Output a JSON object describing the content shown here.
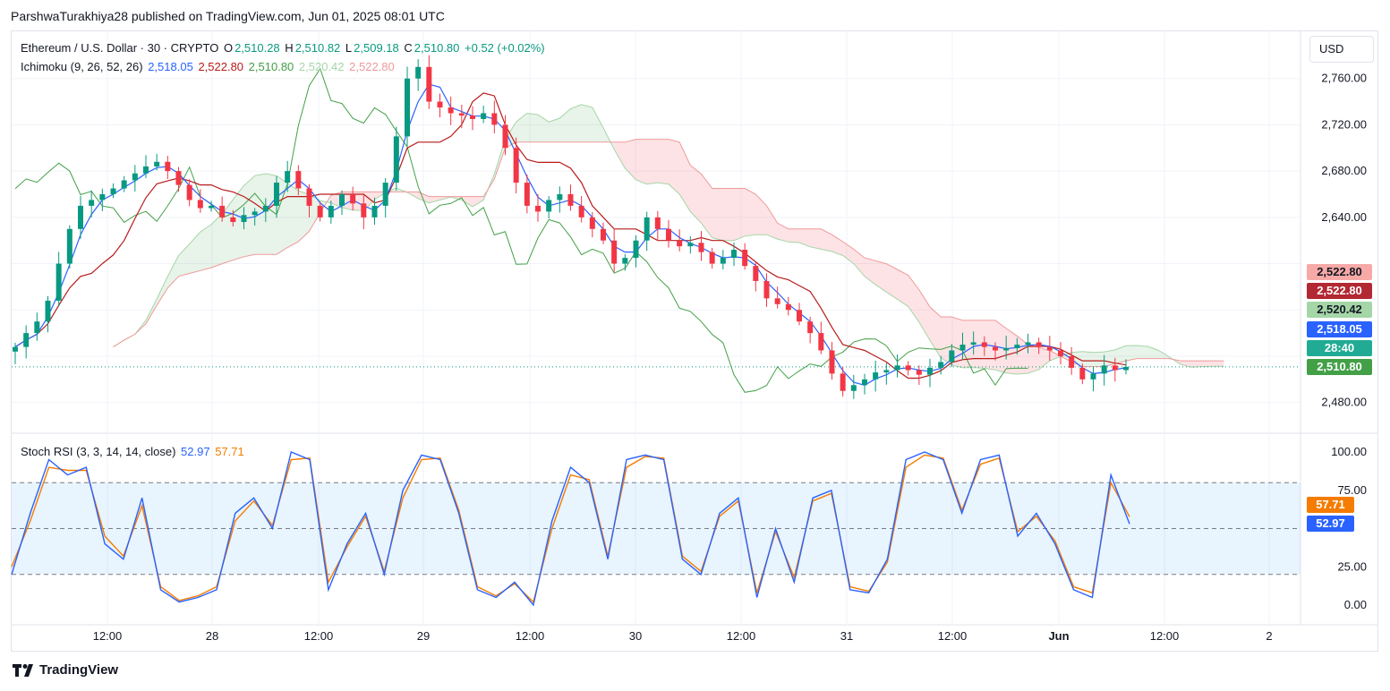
{
  "header": {
    "publisher": "ParshwaTurakhiya28 published on TradingView.com, Jun 01, 2025 08:01 UTC"
  },
  "legend": {
    "symbol": "Ethereum / U.S. Dollar · 30 · CRYPTO",
    "open_label": "O",
    "open": "2,510.28",
    "high_label": "H",
    "high": "2,510.82",
    "low_label": "L",
    "low": "2,509.18",
    "close_label": "C",
    "close": "2,510.80",
    "change": "+0.52 (+0.02%)",
    "ichimoku_title": "Ichimoku (9, 26, 52, 26)",
    "ichimoku_values": [
      "2,518.05",
      "2,522.80",
      "2,510.80",
      "2,520.42",
      "2,522.80"
    ],
    "stoch_title": "Stoch RSI (3, 3, 14, 14, close)",
    "stoch_k": "52.97",
    "stoch_d": "57.71"
  },
  "currency_button": "USD",
  "price_tags": [
    {
      "text": "2,522.80",
      "bg": "#f7a9a7",
      "fg": "#131722"
    },
    {
      "text": "2,522.80",
      "bg": "#b22833",
      "fg": "#ffffff"
    },
    {
      "text": "2,520.42",
      "bg": "#a5d6a7",
      "fg": "#131722"
    },
    {
      "text": "2,518.05",
      "bg": "#2962ff",
      "fg": "#ffffff"
    },
    {
      "text": "28:40",
      "bg": "#22ab94",
      "fg": "#ffffff"
    },
    {
      "text": "2,510.80",
      "bg": "#43a047",
      "fg": "#ffffff"
    }
  ],
  "stoch_tags": [
    {
      "text": "57.71",
      "bg": "#f57c00",
      "fg": "#ffffff"
    },
    {
      "text": "52.97",
      "bg": "#2962ff",
      "fg": "#ffffff"
    }
  ],
  "brand": "TradingView",
  "colors": {
    "up": "#089981",
    "down": "#f23645",
    "tenkan": "#2962ff",
    "kijun": "#b71c1c",
    "chikou": "#43a047",
    "span_a": "#a5d6a7",
    "span_b": "#ef9a9a",
    "stoch_k": "#2962ff",
    "stoch_d": "#f57c00"
  },
  "chart_data": [
    {
      "type": "line",
      "title": "Ethereum / U.S. Dollar · 30 · CRYPTO",
      "y_ticks": [
        "2,760.00",
        "2,720.00",
        "2,680.00",
        "2,640.00",
        "2,480.00"
      ],
      "ylim": [
        2455,
        2800
      ],
      "x_ticks": [
        "12:00",
        "28",
        "12:00",
        "29",
        "12:00",
        "30",
        "12:00",
        "31",
        "12:00",
        "Jun",
        "12:00",
        "2"
      ],
      "series": [
        {
          "name": "Ethereum / U.S. Dollar",
          "values": [
            2528,
            2540,
            2550,
            2568,
            2600,
            2630,
            2650,
            2655,
            2660,
            2665,
            2672,
            2678,
            2684,
            2688,
            2680,
            2668,
            2655,
            2648,
            2650,
            2640,
            2636,
            2642,
            2645,
            2650,
            2670,
            2680,
            2665,
            2650,
            2640,
            2650,
            2660,
            2652,
            2640,
            2650,
            2670,
            2710,
            2760,
            2770,
            2740,
            2735,
            2730,
            2728,
            2725,
            2730,
            2720,
            2700,
            2670,
            2650,
            2645,
            2655,
            2660,
            2650,
            2640,
            2630,
            2620,
            2600,
            2605,
            2620,
            2640,
            2630,
            2620,
            2615,
            2618,
            2610,
            2600,
            2605,
            2612,
            2598,
            2585,
            2570,
            2565,
            2560,
            2550,
            2540,
            2525,
            2505,
            2490,
            2495,
            2500,
            2506,
            2508,
            2512,
            2508,
            2504,
            2510,
            2515,
            2525,
            2530,
            2532,
            2528,
            2525,
            2527,
            2530,
            2532,
            2528,
            2525,
            2520,
            2510,
            2500,
            2505,
            2512,
            2508,
            2510.8
          ]
        },
        {
          "name": "Ichimoku (9, 26, 52, 26)",
          "values": [
            2518.05,
            2522.8,
            2510.8,
            2520.42,
            2522.8
          ]
        }
      ]
    },
    {
      "type": "line",
      "title": "Stoch RSI (3, 3, 14, 14, close)",
      "y_ticks": [
        "100.00",
        "75.00",
        "25.00",
        "0.00"
      ],
      "ylim": [
        0,
        100
      ],
      "bands": [
        20,
        50,
        80
      ],
      "series": [
        {
          "name": "K",
          "values": [
            20,
            60,
            95,
            85,
            90,
            40,
            30,
            70,
            10,
            2,
            5,
            10,
            60,
            70,
            50,
            100,
            95,
            10,
            40,
            60,
            20,
            75,
            98,
            95,
            60,
            10,
            5,
            15,
            0,
            55,
            90,
            80,
            30,
            95,
            98,
            95,
            30,
            20,
            60,
            70,
            5,
            50,
            15,
            70,
            75,
            10,
            8,
            30,
            95,
            100,
            95,
            60,
            95,
            98,
            45,
            60,
            40,
            10,
            5,
            85,
            52.97
          ]
        },
        {
          "name": "D",
          "values": [
            25,
            55,
            90,
            88,
            88,
            45,
            32,
            65,
            12,
            3,
            6,
            12,
            55,
            68,
            52,
            95,
            96,
            15,
            38,
            58,
            22,
            70,
            95,
            96,
            62,
            12,
            6,
            14,
            2,
            50,
            85,
            82,
            32,
            90,
            97,
            96,
            32,
            22,
            58,
            68,
            8,
            48,
            18,
            68,
            73,
            12,
            9,
            28,
            90,
            98,
            96,
            62,
            92,
            96,
            48,
            58,
            42,
            12,
            8,
            80,
            57.71
          ]
        }
      ]
    }
  ]
}
